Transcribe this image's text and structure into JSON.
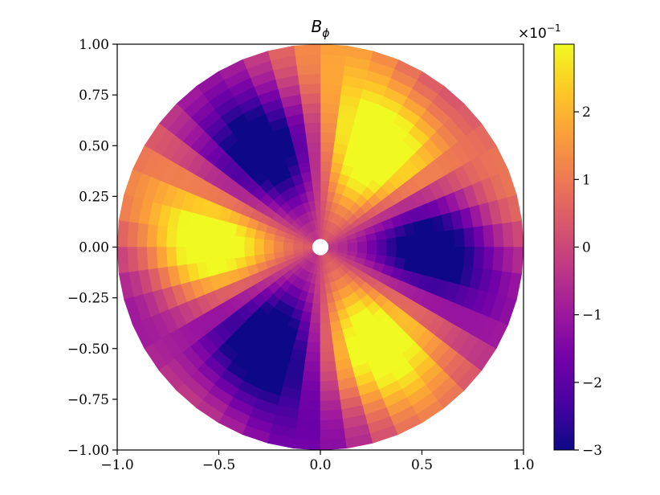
{
  "chart_data": {
    "type": "heatmap",
    "title": "B",
    "title_subscript": "ϕ",
    "xlabel": "",
    "ylabel": "",
    "xlim": [
      -1.0,
      1.0
    ],
    "ylim": [
      -1.0,
      1.0
    ],
    "x_ticks": [
      -1.0,
      -0.5,
      0.0,
      0.5,
      1.0
    ],
    "x_tick_labels": [
      "−1.0",
      "−0.5",
      "0.0",
      "0.5",
      "1.0"
    ],
    "y_ticks": [
      1.0,
      0.75,
      0.5,
      0.25,
      0.0,
      -0.25,
      -0.5,
      -0.75,
      -1.0
    ],
    "y_tick_labels": [
      "1.00",
      "0.75",
      "0.50",
      "0.25",
      "0.00",
      "−0.25",
      "−0.50",
      "−0.75",
      "−1.00"
    ],
    "grid": false,
    "domain": "disk",
    "inner_radius": 0.04,
    "outer_radius": 1.0,
    "colormap": "plasma",
    "colormap_stops": [
      "#0d0887",
      "#46039f",
      "#7201a8",
      "#9c179e",
      "#bd3786",
      "#d8576b",
      "#ed7953",
      "#fb9f3a",
      "#fdca26",
      "#f0f921"
    ],
    "colorbar": {
      "vmin": -3,
      "vmax": 3,
      "ticks": [
        2,
        1,
        0,
        -1,
        -2,
        -3
      ],
      "tick_labels": [
        "2",
        "1",
        "0",
        "−1",
        "−2",
        "−3"
      ],
      "offset_base": "×10",
      "offset_exponent": "−1"
    },
    "radial_bins": 20,
    "angular_bins": 48,
    "field": {
      "modes": [
        {
          "n": 3,
          "amplitude": 2.0,
          "phase_deg": -90,
          "radial_peak": 0.55,
          "radial_width": 0.32
        },
        {
          "n": 1,
          "amplitude": 0.35,
          "phase_deg": 20,
          "radial_peak": 0.9,
          "radial_width": 0.4
        },
        {
          "n": 5,
          "amplitude": 0.45,
          "phase_deg": 10,
          "radial_peak": 0.95,
          "radial_width": 0.3
        }
      ],
      "offset": 0.9,
      "scale": 1.0
    }
  }
}
